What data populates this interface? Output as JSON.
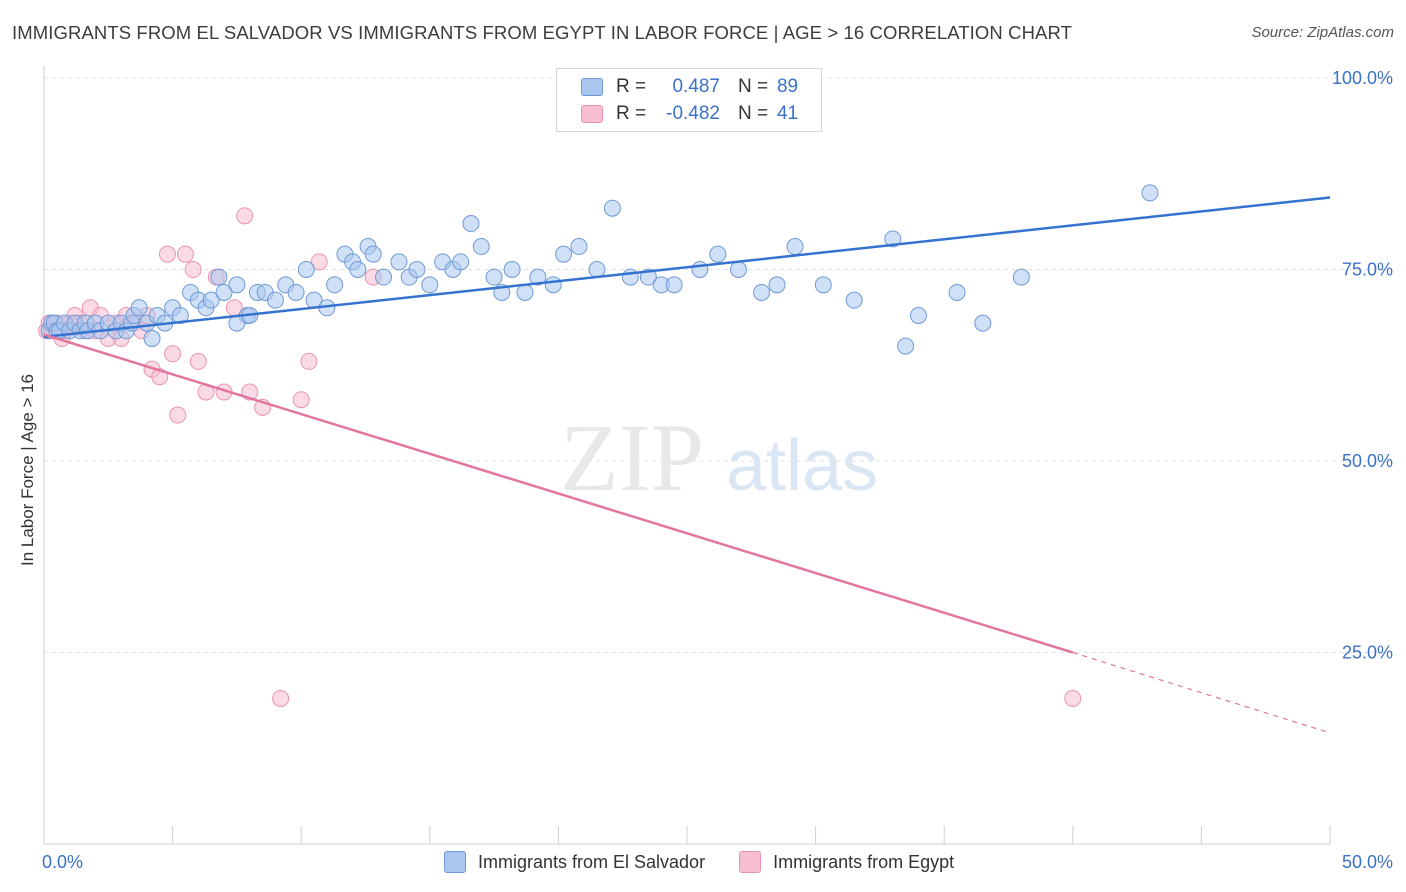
{
  "chart_data": {
    "type": "scatter",
    "title": "IMMIGRANTS FROM EL SALVADOR VS IMMIGRANTS FROM EGYPT IN LABOR FORCE | AGE > 16 CORRELATION CHART",
    "source": "Source: ZipAtlas.com",
    "ylabel": "In Labor Force | Age > 16",
    "xlabel": "",
    "xlim": [
      0,
      50
    ],
    "ylim": [
      0,
      100
    ],
    "x_tick_labels": [
      "0.0%",
      "50.0%"
    ],
    "y_ticks": [
      25,
      50,
      75,
      100
    ],
    "y_tick_labels": [
      "25.0%",
      "50.0%",
      "75.0%",
      "100.0%"
    ],
    "grid": true,
    "watermark": {
      "zip": "ZIP",
      "atlas": "atlas"
    },
    "colors": {
      "blue_fill": "#a9c6ee",
      "blue_stroke": "#6f9ad6",
      "blue_line": "#3474d0",
      "pink_fill": "#f6bed0",
      "pink_stroke": "#ec93b0",
      "pink_line": "#e2769e",
      "axis_label": "#3a72c8"
    },
    "legend_stats": [
      {
        "r_label": "R =",
        "r_value": "0.487",
        "n_label": "N =",
        "n_value": "89"
      },
      {
        "r_label": "R =",
        "r_value": "-0.482",
        "n_label": "N =",
        "n_value": "41"
      }
    ],
    "series": [
      {
        "name": "Immigrants from El Salvador",
        "color": "#a9c6ee",
        "trendline": {
          "x": [
            0,
            50
          ],
          "y": [
            66.2,
            84.4
          ]
        },
        "points": [
          [
            0.2,
            67
          ],
          [
            0.3,
            68
          ],
          [
            0.4,
            68
          ],
          [
            0.5,
            67
          ],
          [
            0.6,
            67
          ],
          [
            0.8,
            68
          ],
          [
            1.0,
            67
          ],
          [
            1.2,
            68
          ],
          [
            1.4,
            67
          ],
          [
            1.6,
            68
          ],
          [
            1.7,
            67
          ],
          [
            2.0,
            68
          ],
          [
            2.2,
            67
          ],
          [
            2.5,
            68
          ],
          [
            2.8,
            67
          ],
          [
            3.0,
            68
          ],
          [
            3.2,
            67
          ],
          [
            3.4,
            68
          ],
          [
            3.5,
            69
          ],
          [
            3.7,
            70
          ],
          [
            4.0,
            68
          ],
          [
            4.2,
            66
          ],
          [
            4.4,
            69
          ],
          [
            4.7,
            68
          ],
          [
            5.0,
            70
          ],
          [
            5.3,
            69
          ],
          [
            5.7,
            72
          ],
          [
            6.0,
            71
          ],
          [
            6.3,
            70
          ],
          [
            6.5,
            71
          ],
          [
            6.8,
            74
          ],
          [
            7.0,
            72
          ],
          [
            7.5,
            73
          ],
          [
            7.9,
            69
          ],
          [
            7.5,
            68
          ],
          [
            8.0,
            69
          ],
          [
            8.3,
            72
          ],
          [
            8.6,
            72
          ],
          [
            9.0,
            71
          ],
          [
            9.4,
            73
          ],
          [
            9.8,
            72
          ],
          [
            10.2,
            75
          ],
          [
            10.5,
            71
          ],
          [
            11.0,
            70
          ],
          [
            11.3,
            73
          ],
          [
            11.7,
            77
          ],
          [
            12.0,
            76
          ],
          [
            12.2,
            75
          ],
          [
            12.6,
            78
          ],
          [
            12.8,
            77
          ],
          [
            13.2,
            74
          ],
          [
            13.8,
            76
          ],
          [
            14.2,
            74
          ],
          [
            14.5,
            75
          ],
          [
            15.0,
            73
          ],
          [
            15.5,
            76
          ],
          [
            15.9,
            75
          ],
          [
            16.2,
            76
          ],
          [
            16.6,
            81
          ],
          [
            17.0,
            78
          ],
          [
            17.5,
            74
          ],
          [
            17.8,
            72
          ],
          [
            18.2,
            75
          ],
          [
            18.7,
            72
          ],
          [
            19.2,
            74
          ],
          [
            19.8,
            73
          ],
          [
            20.2,
            77
          ],
          [
            20.8,
            78
          ],
          [
            21.5,
            75
          ],
          [
            22.1,
            83
          ],
          [
            22.8,
            74
          ],
          [
            23.5,
            74
          ],
          [
            24.0,
            73
          ],
          [
            24.5,
            73
          ],
          [
            25.5,
            75
          ],
          [
            26.2,
            77
          ],
          [
            27.0,
            75
          ],
          [
            27.9,
            72
          ],
          [
            28.5,
            73
          ],
          [
            29.2,
            78
          ],
          [
            30.3,
            73
          ],
          [
            31.5,
            71
          ],
          [
            33.0,
            79
          ],
          [
            33.5,
            65
          ],
          [
            34.0,
            69
          ],
          [
            35.5,
            72
          ],
          [
            36.5,
            68
          ],
          [
            38.0,
            74
          ],
          [
            43.0,
            85
          ]
        ]
      },
      {
        "name": "Immigrants from Egypt",
        "color": "#f6bed0",
        "trendline": {
          "x": [
            0,
            40
          ],
          "y": [
            66.5,
            25.0
          ]
        },
        "trendline_dashed": {
          "x": [
            40,
            50
          ],
          "y": [
            25.0,
            14.5
          ]
        },
        "points": [
          [
            0.1,
            67
          ],
          [
            0.2,
            68
          ],
          [
            0.3,
            67
          ],
          [
            0.5,
            68
          ],
          [
            0.7,
            66
          ],
          [
            0.8,
            67
          ],
          [
            1.0,
            68
          ],
          [
            1.2,
            69
          ],
          [
            1.4,
            68
          ],
          [
            1.6,
            67
          ],
          [
            1.8,
            70
          ],
          [
            2.0,
            67
          ],
          [
            2.2,
            69
          ],
          [
            2.5,
            66
          ],
          [
            2.8,
            68
          ],
          [
            3.0,
            66
          ],
          [
            3.2,
            69
          ],
          [
            3.5,
            68
          ],
          [
            3.8,
            67
          ],
          [
            4.0,
            69
          ],
          [
            4.2,
            62
          ],
          [
            4.5,
            61
          ],
          [
            4.8,
            77
          ],
          [
            5.0,
            64
          ],
          [
            5.2,
            56
          ],
          [
            5.5,
            77
          ],
          [
            5.8,
            75
          ],
          [
            6.0,
            63
          ],
          [
            6.3,
            59
          ],
          [
            6.7,
            74
          ],
          [
            7.0,
            59
          ],
          [
            7.4,
            70
          ],
          [
            7.8,
            82
          ],
          [
            8.0,
            59
          ],
          [
            8.5,
            57
          ],
          [
            9.2,
            19
          ],
          [
            10.0,
            58
          ],
          [
            10.3,
            63
          ],
          [
            10.7,
            76
          ],
          [
            12.8,
            74
          ],
          [
            40.0,
            19
          ]
        ]
      }
    ]
  }
}
